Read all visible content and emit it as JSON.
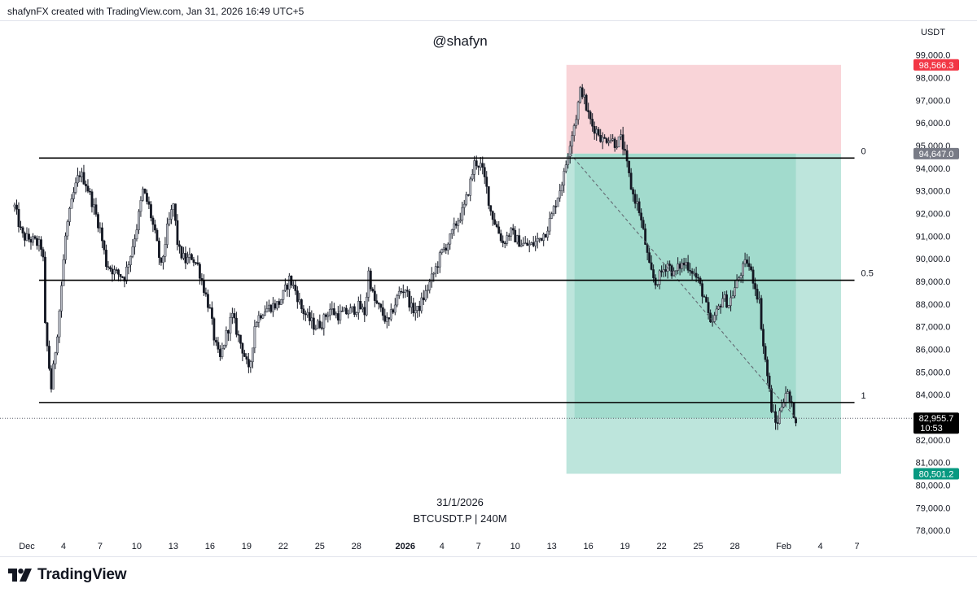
{
  "header": {
    "caption": "shafynFX created with TradingView.com, Jan 31, 2026 16:49 UTC+5"
  },
  "footer": {
    "logo_text": "TradingView"
  },
  "chart_data": {
    "type": "candlestick",
    "title": "@shafyn",
    "subtitle_date": "31/1/2026",
    "symbol_label": "BTCUSDT.P | 240M",
    "currency_label": "USDT",
    "ylim": [
      77500,
      100500
    ],
    "y_ticks": [
      "78,000.0",
      "79,000.0",
      "80,000.0",
      "81,000.0",
      "82,000.0",
      "84,000.0",
      "85,000.0",
      "86,000.0",
      "87,000.0",
      "88,000.0",
      "89,000.0",
      "90,000.0",
      "91,000.0",
      "92,000.0",
      "93,000.0",
      "94,000.0",
      "95,000.0",
      "96,000.0",
      "97,000.0",
      "98,000.0",
      "99,000.0"
    ],
    "x_ticks": [
      {
        "label": "Dec",
        "day": 1
      },
      {
        "label": "4",
        "day": 4
      },
      {
        "label": "7",
        "day": 7
      },
      {
        "label": "10",
        "day": 10
      },
      {
        "label": "13",
        "day": 13
      },
      {
        "label": "16",
        "day": 16
      },
      {
        "label": "19",
        "day": 19
      },
      {
        "label": "22",
        "day": 22
      },
      {
        "label": "25",
        "day": 25
      },
      {
        "label": "28",
        "day": 28
      },
      {
        "label": "2026",
        "day": 32,
        "bold": true
      },
      {
        "label": "4",
        "day": 35
      },
      {
        "label": "7",
        "day": 38
      },
      {
        "label": "10",
        "day": 41
      },
      {
        "label": "13",
        "day": 44
      },
      {
        "label": "16",
        "day": 47
      },
      {
        "label": "19",
        "day": 50
      },
      {
        "label": "22",
        "day": 53
      },
      {
        "label": "25",
        "day": 56
      },
      {
        "label": "28",
        "day": 59
      },
      {
        "label": "Feb",
        "day": 63
      },
      {
        "label": "4",
        "day": 66
      },
      {
        "label": "7",
        "day": 69
      }
    ],
    "x_day_range": [
      -1.2,
      73.5
    ],
    "price_labels": [
      {
        "value": 98566.3,
        "text": "98,566.3",
        "color": "#f23645"
      },
      {
        "value": 94647.0,
        "text": "94,647.0",
        "color": "#787b86"
      },
      {
        "value": 82955.7,
        "text": "82,955.7",
        "sub": "10:53",
        "color": "#000000"
      },
      {
        "value": 80501.2,
        "text": "80,501.2",
        "color": "#089981"
      }
    ],
    "fib_levels": [
      {
        "label": "0",
        "value": 94450,
        "day_from": 2.0,
        "day_to": 68.8
      },
      {
        "label": "0.5",
        "value": 89050,
        "day_from": 2.0,
        "day_to": 68.8
      },
      {
        "label": "1",
        "value": 83650,
        "day_from": 2.0,
        "day_to": 68.8
      }
    ],
    "current_price": 82955.7,
    "position": {
      "day_from": 45.2,
      "day_to": 67.7,
      "entry": 94647.0,
      "stop": 98566.3,
      "target": 80501.2
    },
    "path_points": [
      {
        "day": 0,
        "value": 92300
      },
      {
        "day": 0.6,
        "value": 91000
      },
      {
        "day": 1.5,
        "value": 90800
      },
      {
        "day": 2.3,
        "value": 90500
      },
      {
        "day": 2.5,
        "value": 87000
      },
      {
        "day": 3.0,
        "value": 84300
      },
      {
        "day": 3.6,
        "value": 87300
      },
      {
        "day": 4.2,
        "value": 91200
      },
      {
        "day": 4.8,
        "value": 92800
      },
      {
        "day": 5.3,
        "value": 93800
      },
      {
        "day": 5.8,
        "value": 93400
      },
      {
        "day": 6.3,
        "value": 92600
      },
      {
        "day": 7.0,
        "value": 91300
      },
      {
        "day": 7.5,
        "value": 89800
      },
      {
        "day": 8.2,
        "value": 89400
      },
      {
        "day": 9.0,
        "value": 89200
      },
      {
        "day": 9.5,
        "value": 90200
      },
      {
        "day": 10.0,
        "value": 91400
      },
      {
        "day": 10.5,
        "value": 93000
      },
      {
        "day": 11.0,
        "value": 92300
      },
      {
        "day": 11.6,
        "value": 90800
      },
      {
        "day": 12.0,
        "value": 89600
      },
      {
        "day": 12.5,
        "value": 91300
      },
      {
        "day": 13.0,
        "value": 92400
      },
      {
        "day": 13.4,
        "value": 90400
      },
      {
        "day": 14.0,
        "value": 89900
      },
      {
        "day": 14.5,
        "value": 90100
      },
      {
        "day": 15.0,
        "value": 89700
      },
      {
        "day": 15.5,
        "value": 88700
      },
      {
        "day": 16.0,
        "value": 87700
      },
      {
        "day": 16.4,
        "value": 86300
      },
      {
        "day": 16.8,
        "value": 85500
      },
      {
        "day": 17.3,
        "value": 86600
      },
      {
        "day": 17.8,
        "value": 87500
      },
      {
        "day": 18.3,
        "value": 86600
      },
      {
        "day": 18.8,
        "value": 85800
      },
      {
        "day": 19.2,
        "value": 84900
      },
      {
        "day": 19.7,
        "value": 87200
      },
      {
        "day": 20.3,
        "value": 87700
      },
      {
        "day": 21.0,
        "value": 87900
      },
      {
        "day": 21.6,
        "value": 88000
      },
      {
        "day": 22.0,
        "value": 88400
      },
      {
        "day": 22.5,
        "value": 89100
      },
      {
        "day": 23.0,
        "value": 88600
      },
      {
        "day": 23.5,
        "value": 87800
      },
      {
        "day": 24.0,
        "value": 87400
      },
      {
        "day": 24.6,
        "value": 87000
      },
      {
        "day": 25.2,
        "value": 87200
      },
      {
        "day": 25.8,
        "value": 87800
      },
      {
        "day": 26.4,
        "value": 87500
      },
      {
        "day": 27.0,
        "value": 87600
      },
      {
        "day": 27.6,
        "value": 87700
      },
      {
        "day": 28.2,
        "value": 87900
      },
      {
        "day": 28.7,
        "value": 87600
      },
      {
        "day": 29.0,
        "value": 89400
      },
      {
        "day": 29.4,
        "value": 88200
      },
      {
        "day": 30.0,
        "value": 87700
      },
      {
        "day": 30.6,
        "value": 87100
      },
      {
        "day": 31.0,
        "value": 87800
      },
      {
        "day": 31.5,
        "value": 88500
      },
      {
        "day": 32.0,
        "value": 88700
      },
      {
        "day": 32.5,
        "value": 87800
      },
      {
        "day": 33.0,
        "value": 87700
      },
      {
        "day": 33.6,
        "value": 88400
      },
      {
        "day": 34.3,
        "value": 89300
      },
      {
        "day": 35.0,
        "value": 90300
      },
      {
        "day": 35.6,
        "value": 90800
      },
      {
        "day": 36.2,
        "value": 91600
      },
      {
        "day": 36.8,
        "value": 92200
      },
      {
        "day": 37.3,
        "value": 93300
      },
      {
        "day": 37.7,
        "value": 94300
      },
      {
        "day": 38.2,
        "value": 94100
      },
      {
        "day": 38.6,
        "value": 93300
      },
      {
        "day": 39.0,
        "value": 92100
      },
      {
        "day": 39.5,
        "value": 91400
      },
      {
        "day": 40.0,
        "value": 90700
      },
      {
        "day": 40.6,
        "value": 91200
      },
      {
        "day": 41.2,
        "value": 90800
      },
      {
        "day": 41.8,
        "value": 90600
      },
      {
        "day": 42.4,
        "value": 90600
      },
      {
        "day": 43.0,
        "value": 90900
      },
      {
        "day": 43.5,
        "value": 91200
      },
      {
        "day": 44.0,
        "value": 91900
      },
      {
        "day": 44.5,
        "value": 92800
      },
      {
        "day": 45.0,
        "value": 93700
      },
      {
        "day": 45.5,
        "value": 95200
      },
      {
        "day": 46.0,
        "value": 96300
      },
      {
        "day": 46.4,
        "value": 97600
      },
      {
        "day": 46.9,
        "value": 96500
      },
      {
        "day": 47.3,
        "value": 95900
      },
      {
        "day": 47.8,
        "value": 95600
      },
      {
        "day": 48.2,
        "value": 95200
      },
      {
        "day": 48.7,
        "value": 95400
      },
      {
        "day": 49.2,
        "value": 95100
      },
      {
        "day": 49.7,
        "value": 95300
      },
      {
        "day": 50.1,
        "value": 94300
      },
      {
        "day": 50.6,
        "value": 92900
      },
      {
        "day": 51.1,
        "value": 92300
      },
      {
        "day": 51.6,
        "value": 90900
      },
      {
        "day": 52.0,
        "value": 89600
      },
      {
        "day": 52.5,
        "value": 88900
      },
      {
        "day": 53.0,
        "value": 89400
      },
      {
        "day": 53.5,
        "value": 89800
      },
      {
        "day": 54.0,
        "value": 89300
      },
      {
        "day": 54.5,
        "value": 89700
      },
      {
        "day": 55.0,
        "value": 89800
      },
      {
        "day": 55.5,
        "value": 89500
      },
      {
        "day": 56.0,
        "value": 89000
      },
      {
        "day": 56.5,
        "value": 88300
      },
      {
        "day": 57.0,
        "value": 87000
      },
      {
        "day": 57.5,
        "value": 87600
      },
      {
        "day": 58.0,
        "value": 88300
      },
      {
        "day": 58.5,
        "value": 88000
      },
      {
        "day": 59.0,
        "value": 88700
      },
      {
        "day": 59.5,
        "value": 89400
      },
      {
        "day": 60.0,
        "value": 89900
      },
      {
        "day": 60.5,
        "value": 89100
      },
      {
        "day": 61.0,
        "value": 88100
      },
      {
        "day": 61.3,
        "value": 86300
      },
      {
        "day": 61.7,
        "value": 84700
      },
      {
        "day": 62.0,
        "value": 83400
      },
      {
        "day": 62.4,
        "value": 82600
      },
      {
        "day": 62.8,
        "value": 83500
      },
      {
        "day": 63.2,
        "value": 84200
      },
      {
        "day": 63.6,
        "value": 83500
      },
      {
        "day": 64.0,
        "value": 82955.7
      }
    ]
  }
}
